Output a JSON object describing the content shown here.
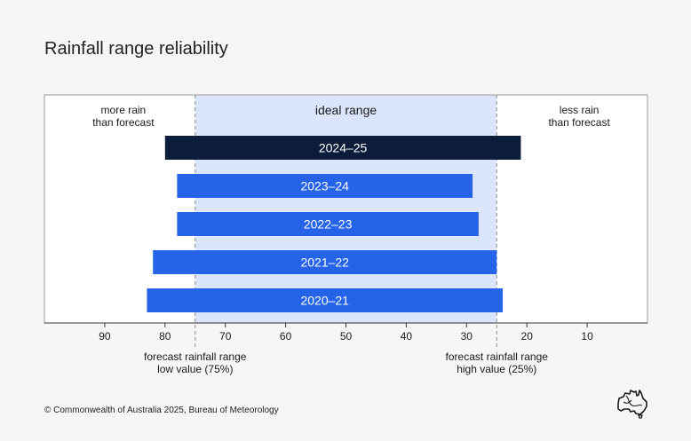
{
  "title": "Rainfall range reliability",
  "footer": "© Commonwealth of Australia 2025, Bureau of Meteorology",
  "logo_icon": "australia-map-icon",
  "chart_data": {
    "type": "bar",
    "orientation": "horizontal",
    "title": "Rainfall range reliability",
    "x_axis_reversed": true,
    "xlim": [
      100,
      0
    ],
    "x_ticks": [
      90,
      80,
      70,
      60,
      50,
      40,
      30,
      20,
      10
    ],
    "ideal_range": {
      "from": 75,
      "to": 25,
      "label": "ideal range"
    },
    "zone_labels": {
      "left": [
        "more rain",
        "than forecast"
      ],
      "right": [
        "less rain",
        "than forecast"
      ]
    },
    "reference_lines": [
      {
        "value": 75,
        "label": [
          "forecast rainfall range",
          "low value (75%)"
        ]
      },
      {
        "value": 25,
        "label": [
          "forecast rainfall range",
          "high value (25%)"
        ]
      }
    ],
    "categories": [
      "2024–25",
      "2023–24",
      "2022–23",
      "2021–22",
      "2020–21"
    ],
    "bars": [
      {
        "label": "2024–25",
        "start": 80,
        "end": 21,
        "color": "#0b1d3a"
      },
      {
        "label": "2023–24",
        "start": 78,
        "end": 29,
        "color": "#2563e8"
      },
      {
        "label": "2022–23",
        "start": 78,
        "end": 28,
        "color": "#2563e8"
      },
      {
        "label": "2021–22",
        "start": 82,
        "end": 25,
        "color": "#2563e8"
      },
      {
        "label": "2020–21",
        "start": 83,
        "end": 24,
        "color": "#2563e8"
      }
    ],
    "colors": {
      "ideal_fill": "#dbe5fb",
      "highlight_bar": "#0b1d3a",
      "bar": "#2563e8"
    }
  }
}
